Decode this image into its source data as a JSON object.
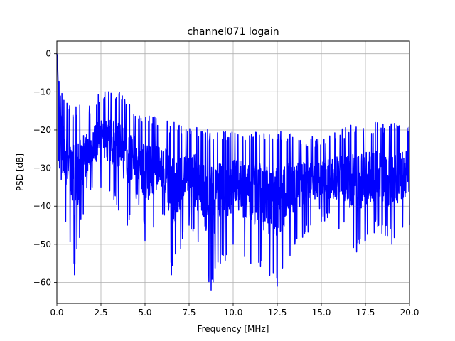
{
  "chart_data": {
    "type": "line",
    "title": "channel071 logain",
    "xlabel": "Frequency [MHz]",
    "ylabel": "PSD [dB]",
    "xlim": [
      0.0,
      20.0
    ],
    "ylim": [
      -65.5,
      3.3
    ],
    "xticks": [
      0.0,
      2.5,
      5.0,
      7.5,
      10.0,
      12.5,
      15.0,
      17.5,
      20.0
    ],
    "xtick_labels": [
      "0.0",
      "2.5",
      "5.0",
      "7.5",
      "10.0",
      "12.5",
      "15.0",
      "17.5",
      "20.0"
    ],
    "yticks": [
      0,
      -10,
      -20,
      -30,
      -40,
      -50,
      -60
    ],
    "ytick_labels": [
      "0",
      "−10",
      "−20",
      "−30",
      "−40",
      "−50",
      "−60"
    ],
    "grid": true,
    "legend": "none",
    "series": [
      {
        "color": "#0000ff",
        "envelope_points": [
          {
            "x": 0.0,
            "top": 0,
            "bottom": -1
          },
          {
            "x": 0.05,
            "top": -1,
            "bottom": -4
          },
          {
            "x": 0.1,
            "top": -6,
            "bottom": -28
          },
          {
            "x": 0.15,
            "top": -10,
            "bottom": -30
          },
          {
            "x": 0.25,
            "top": -13,
            "bottom": -33
          },
          {
            "x": 0.5,
            "top": -15,
            "bottom": -44
          },
          {
            "x": 1.0,
            "top": -17,
            "bottom": -58
          },
          {
            "x": 1.5,
            "top": -16,
            "bottom": -42
          },
          {
            "x": 2.0,
            "top": -17,
            "bottom": -35
          },
          {
            "x": 2.5,
            "top": -12,
            "bottom": -35
          },
          {
            "x": 3.0,
            "top": -13,
            "bottom": -36
          },
          {
            "x": 3.5,
            "top": -12,
            "bottom": -41
          },
          {
            "x": 4.0,
            "top": -16,
            "bottom": -45
          },
          {
            "x": 4.5,
            "top": -17,
            "bottom": -38
          },
          {
            "x": 5.0,
            "top": -19,
            "bottom": -49
          },
          {
            "x": 6.0,
            "top": -20,
            "bottom": -42
          },
          {
            "x": 6.5,
            "top": -21,
            "bottom": -58
          },
          {
            "x": 7.5,
            "top": -21,
            "bottom": -45
          },
          {
            "x": 8.75,
            "top": -23,
            "bottom": -62
          },
          {
            "x": 10.0,
            "top": -23,
            "bottom": -50
          },
          {
            "x": 11.0,
            "top": -23,
            "bottom": -55
          },
          {
            "x": 12.5,
            "top": -23,
            "bottom": -61
          },
          {
            "x": 13.5,
            "top": -24,
            "bottom": -50
          },
          {
            "x": 15.0,
            "top": -25,
            "bottom": -44
          },
          {
            "x": 16.0,
            "top": -23,
            "bottom": -46
          },
          {
            "x": 17.0,
            "top": -21,
            "bottom": -52
          },
          {
            "x": 18.0,
            "top": -21,
            "bottom": -47
          },
          {
            "x": 19.0,
            "top": -21,
            "bottom": -50
          },
          {
            "x": 20.0,
            "top": -21,
            "bottom": -45
          }
        ]
      }
    ]
  }
}
